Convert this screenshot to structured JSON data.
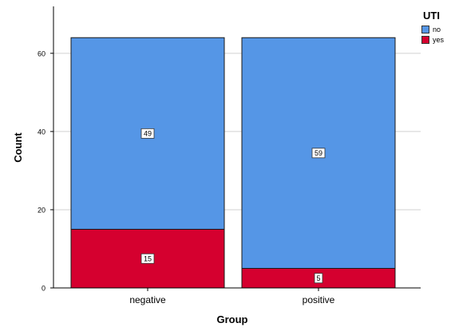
{
  "chart_data": {
    "type": "bar",
    "stacked": true,
    "categories": [
      "negative",
      "positive"
    ],
    "series": [
      {
        "name": "yes",
        "color": "#d5002f",
        "values": [
          15,
          5
        ]
      },
      {
        "name": "no",
        "color": "#5596e6",
        "values": [
          49,
          59
        ]
      }
    ],
    "xlabel": "Group",
    "ylabel": "Count",
    "ylim": [
      0,
      72
    ],
    "yticks": [
      0,
      20,
      40,
      60
    ],
    "grid": true,
    "legend": {
      "title": "UTI",
      "position": "top-right",
      "entries": [
        "no",
        "yes"
      ]
    }
  }
}
